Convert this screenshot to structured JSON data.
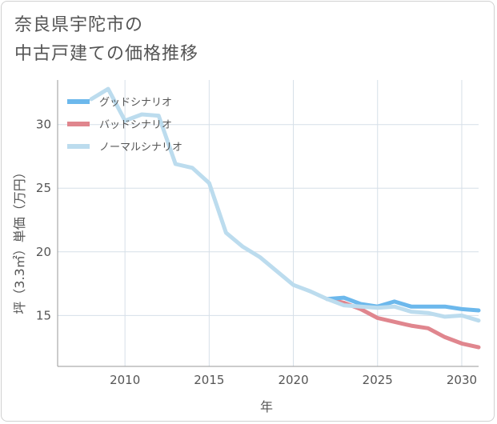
{
  "title_lines": [
    "奈良県宇陀市の",
    "中古戸建ての価格推移"
  ],
  "chart_data": {
    "type": "line",
    "xlabel": "年",
    "ylabel": "坪（3.3㎡）単価（万円）",
    "xlim": [
      2006,
      2031
    ],
    "ylim": [
      11,
      33.5
    ],
    "x_ticks": [
      2010,
      2015,
      2020,
      2025,
      2030
    ],
    "y_ticks": [
      15,
      20,
      25,
      30
    ],
    "grid": true,
    "legend_position": "top-left",
    "series": [
      {
        "name": "グッドシナリオ",
        "color": "#6cb8ec",
        "x": [
          2022,
          2023,
          2024,
          2025,
          2026,
          2027,
          2028,
          2029,
          2030,
          2031
        ],
        "y": [
          16.3,
          16.4,
          15.9,
          15.7,
          16.1,
          15.7,
          15.7,
          15.7,
          15.5,
          15.4
        ]
      },
      {
        "name": "バッドシナリオ",
        "color": "#e0868e",
        "x": [
          2022,
          2023,
          2024,
          2025,
          2026,
          2027,
          2028,
          2029,
          2030,
          2031
        ],
        "y": [
          16.3,
          16.0,
          15.5,
          14.8,
          14.5,
          14.2,
          14.0,
          13.3,
          12.8,
          12.5
        ]
      },
      {
        "name": "ノーマルシナリオ",
        "color": "#bcdcee",
        "x": [
          2008,
          2009,
          2010,
          2011,
          2012,
          2013,
          2014,
          2015,
          2016,
          2017,
          2018,
          2019,
          2020,
          2021,
          2022,
          2023,
          2024,
          2025,
          2026,
          2027,
          2028,
          2029,
          2030,
          2031
        ],
        "y": [
          32.0,
          32.8,
          30.3,
          30.8,
          30.7,
          26.9,
          26.6,
          25.4,
          21.5,
          20.4,
          19.6,
          18.5,
          17.4,
          16.9,
          16.3,
          15.8,
          15.7,
          15.6,
          15.7,
          15.3,
          15.2,
          14.9,
          15.0,
          14.6
        ]
      }
    ]
  }
}
